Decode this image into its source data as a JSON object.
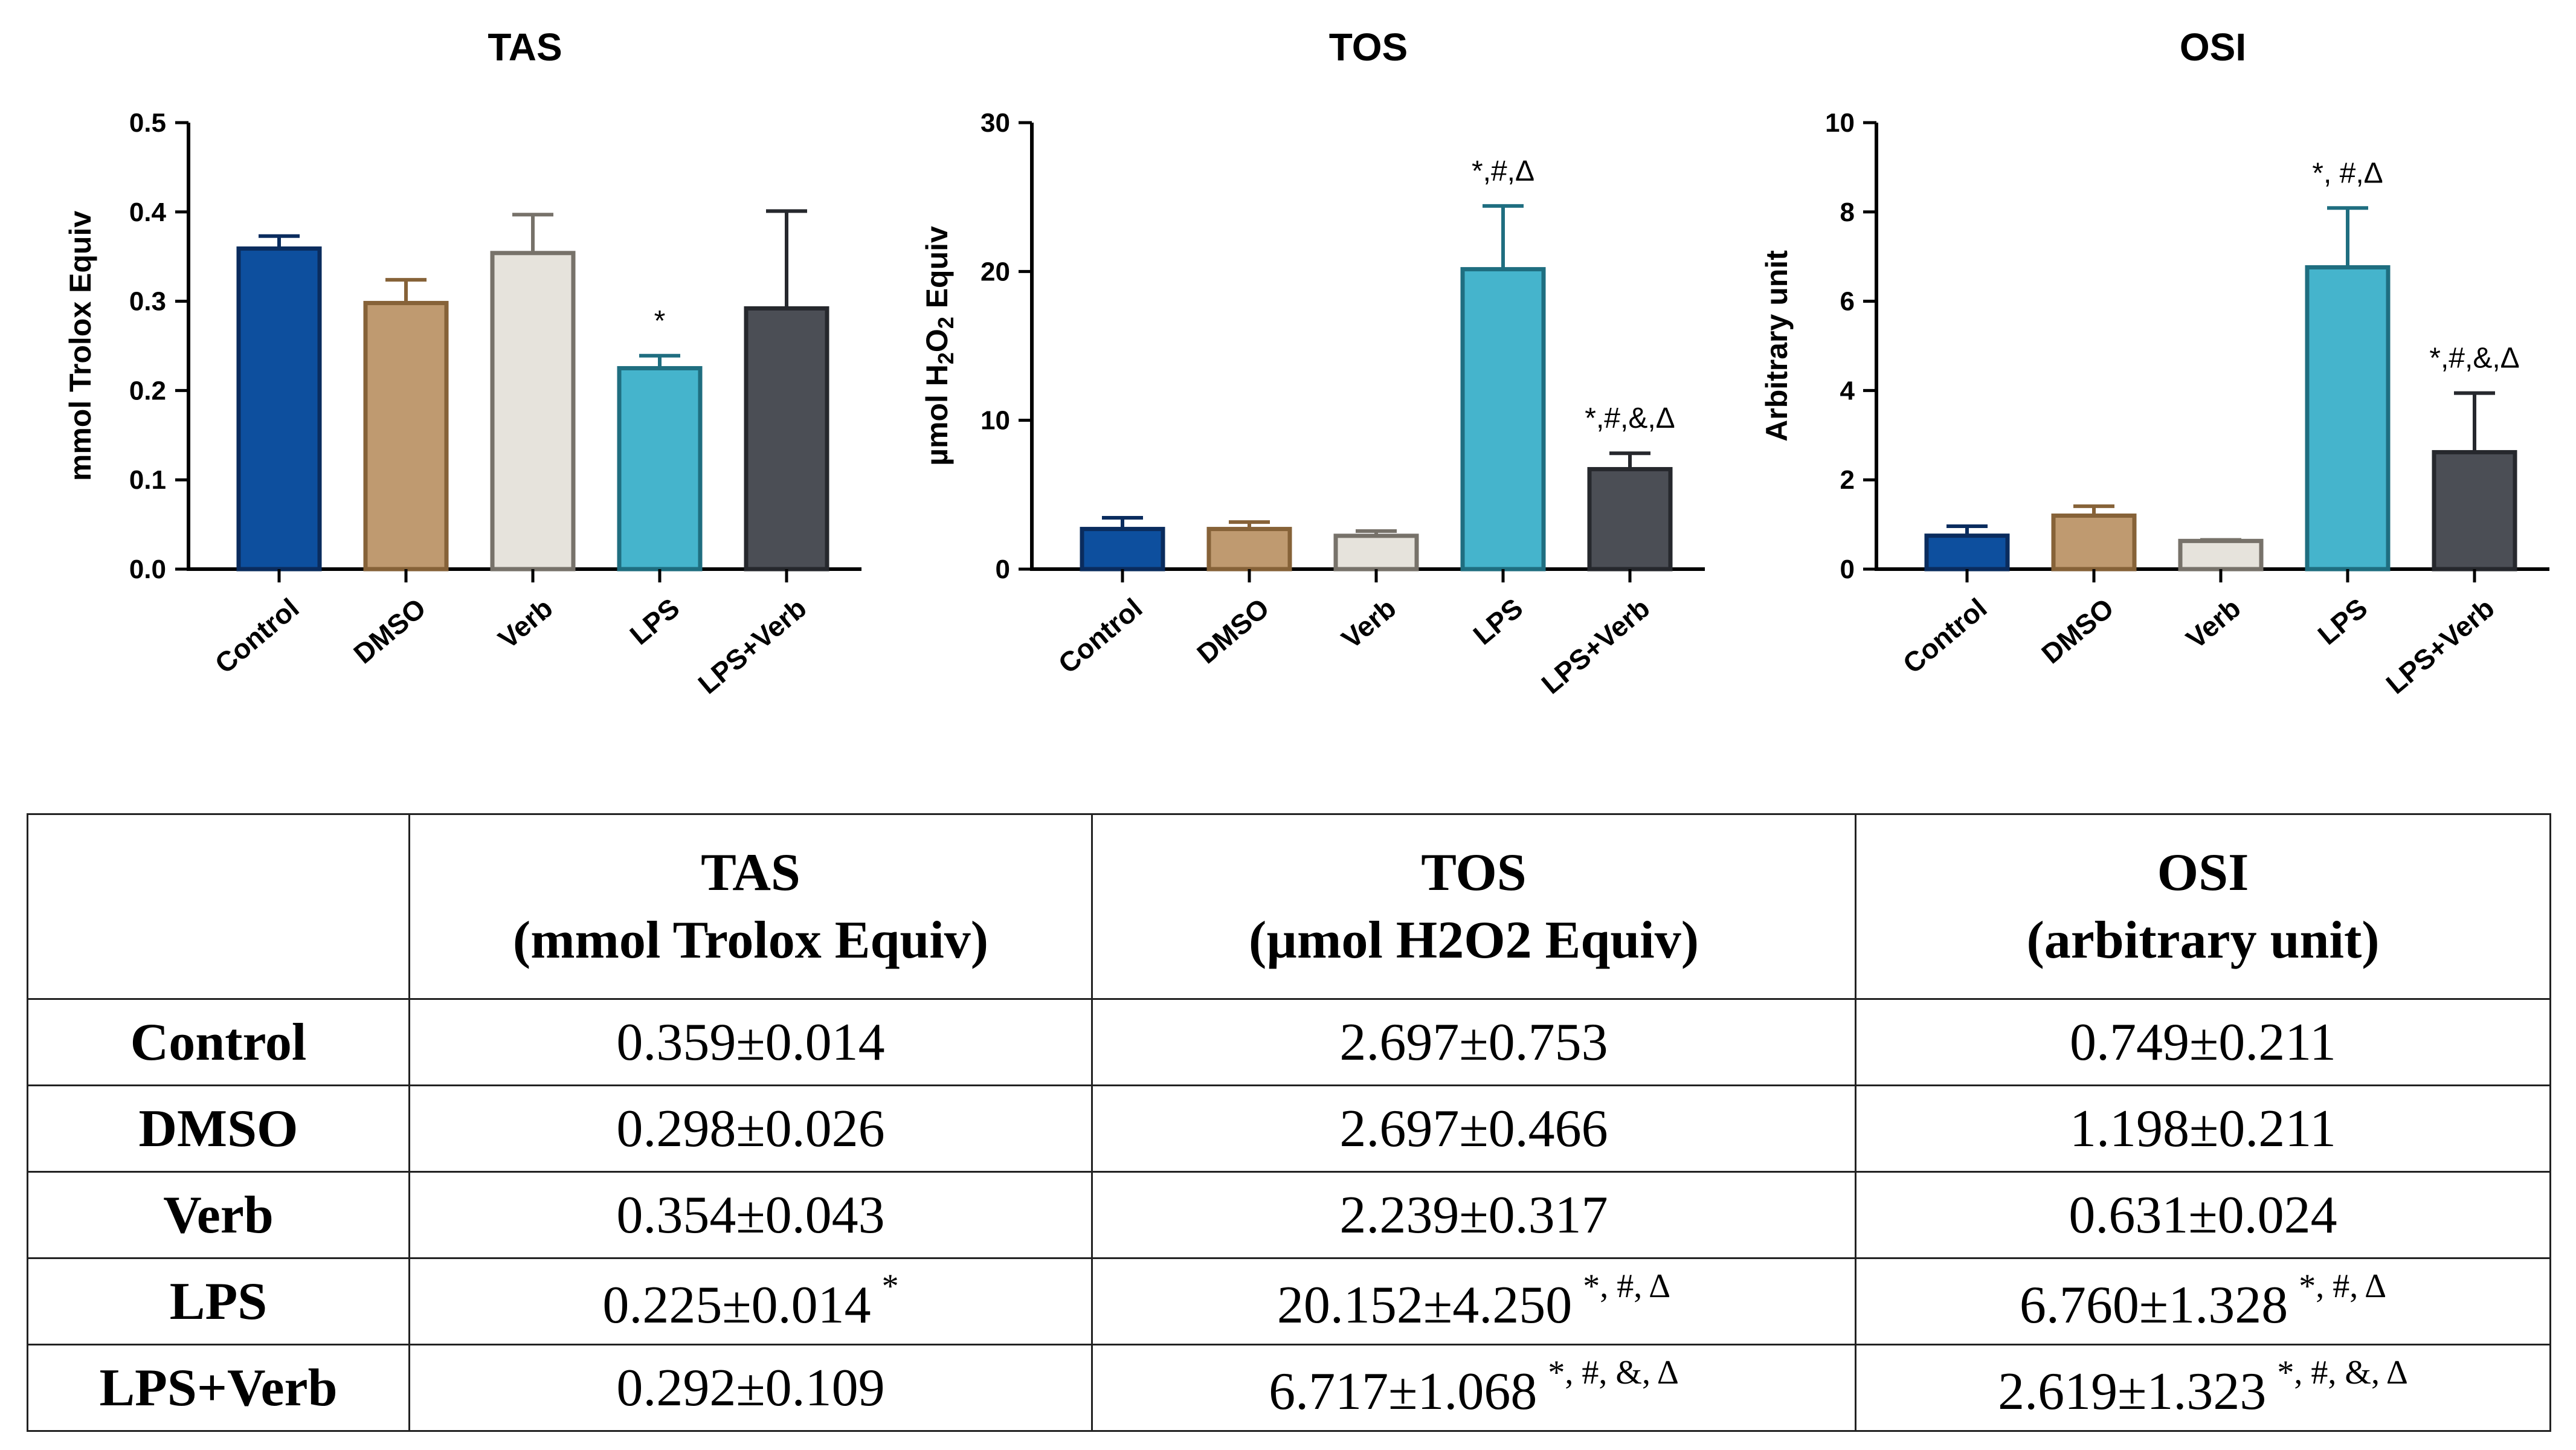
{
  "chart_data": [
    {
      "type": "bar",
      "title": "TAS",
      "ylabel": "mmol Trolox Equiv",
      "xlabel": "",
      "categories": [
        "Control",
        "DMSO",
        "Verb",
        "LPS",
        "LPS+Verb"
      ],
      "values": [
        0.359,
        0.298,
        0.354,
        0.225,
        0.292
      ],
      "errors": [
        0.014,
        0.026,
        0.043,
        0.014,
        0.109
      ],
      "annotations": [
        "",
        "",
        "",
        "*",
        ""
      ],
      "ylim": [
        0,
        0.5
      ],
      "yticks": [
        "0.0",
        "0.1",
        "0.2",
        "0.3",
        "0.4",
        "0.5"
      ],
      "grid": false
    },
    {
      "type": "bar",
      "title": "TOS",
      "ylabel": "µmol H2O2 Equiv",
      "ylabel_parts": [
        "µmol H",
        "2",
        "O",
        "2",
        " Equiv"
      ],
      "xlabel": "",
      "categories": [
        "Control",
        "DMSO",
        "Verb",
        "LPS",
        "LPS+Verb"
      ],
      "values": [
        2.697,
        2.697,
        2.239,
        20.152,
        6.717
      ],
      "errors": [
        0.753,
        0.466,
        0.317,
        4.25,
        1.068
      ],
      "annotations": [
        "",
        "",
        "",
        "*,#,Δ",
        "*,#,&,Δ"
      ],
      "ylim": [
        0,
        30
      ],
      "yticks": [
        "0",
        "10",
        "20",
        "30"
      ],
      "grid": false
    },
    {
      "type": "bar",
      "title": "OSI",
      "ylabel": "Arbitrary unit",
      "xlabel": "",
      "categories": [
        "Control",
        "DMSO",
        "Verb",
        "LPS",
        "LPS+Verb"
      ],
      "values": [
        0.749,
        1.198,
        0.631,
        6.76,
        2.619
      ],
      "errors": [
        0.211,
        0.211,
        0.024,
        1.328,
        1.323
      ],
      "annotations": [
        "",
        "",
        "",
        "*, #,Δ",
        "*,#,&,Δ"
      ],
      "ylim": [
        0,
        10
      ],
      "yticks": [
        "0",
        "2",
        "4",
        "6",
        "8",
        "10"
      ],
      "grid": false
    }
  ],
  "colors": {
    "fills": [
      "#0d4f9e",
      "#bf9a70",
      "#e6e3dc",
      "#45b4cc",
      "#4b4e55"
    ],
    "borders": [
      "#0a2c5e",
      "#866238",
      "#77726a",
      "#1f6e80",
      "#26282d"
    ],
    "axis": "#000000"
  },
  "table": {
    "headers": [
      {
        "line1": "",
        "line2": ""
      },
      {
        "line1": "TAS",
        "line2": "(mmol Trolox Equiv)"
      },
      {
        "line1": "TOS",
        "line2": "(µmol H2O2 Equiv)"
      },
      {
        "line1": "OSI",
        "line2": "(arbitrary unit)"
      }
    ],
    "rows": [
      {
        "group": "Control",
        "tas": "0.359±0.014",
        "tas_sig": "",
        "tos": "2.697±0.753",
        "tos_sig": "",
        "osi": "0.749±0.211",
        "osi_sig": ""
      },
      {
        "group": "DMSO",
        "tas": "0.298±0.026",
        "tas_sig": "",
        "tos": "2.697±0.466",
        "tos_sig": "",
        "osi": "1.198±0.211",
        "osi_sig": ""
      },
      {
        "group": "Verb",
        "tas": "0.354±0.043",
        "tas_sig": "",
        "tos": "2.239±0.317",
        "tos_sig": "",
        "osi": "0.631±0.024",
        "osi_sig": ""
      },
      {
        "group": "LPS",
        "tas": "0.225±0.014",
        "tas_sig": "*",
        "tos": "20.152±4.250",
        "tos_sig": "*, #, Δ",
        "osi": "6.760±1.328",
        "osi_sig": "*, #, Δ"
      },
      {
        "group": "LPS+Verb",
        "tas": "0.292±0.109",
        "tas_sig": "",
        "tos": "6.717±1.068",
        "tos_sig": "*, #, &, Δ",
        "osi": "2.619±1.323",
        "osi_sig": "*, #, &, Δ"
      }
    ]
  }
}
